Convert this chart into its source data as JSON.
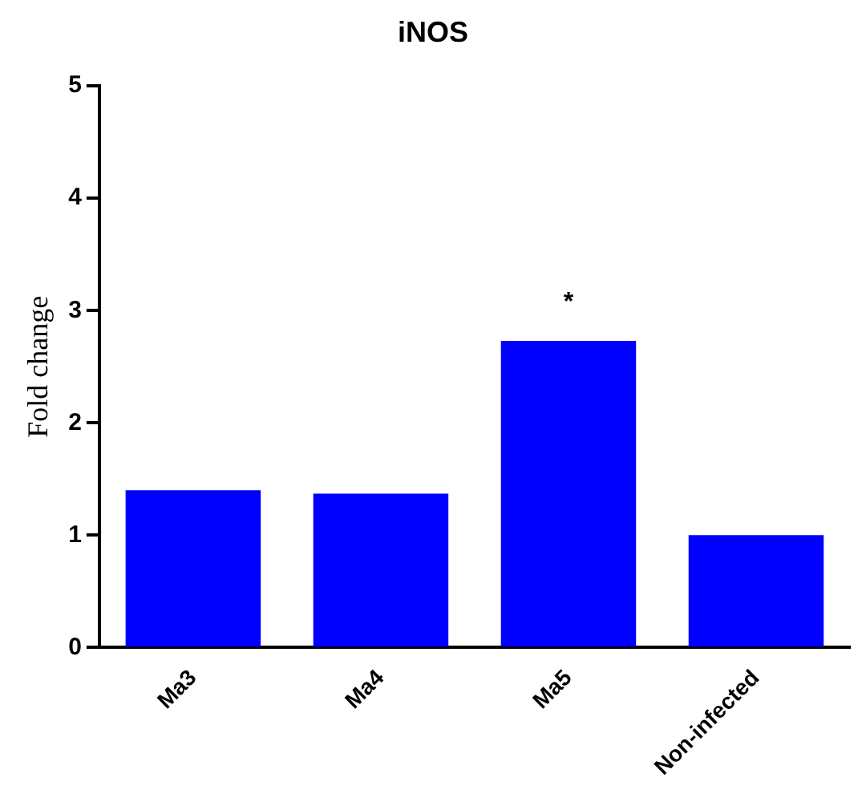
{
  "chart_data": {
    "type": "bar",
    "title": "iNOS",
    "ylabel": "Fold change",
    "categories": [
      "Ma3",
      "Ma4",
      "Ma5",
      "Non-infected"
    ],
    "values": [
      1.4,
      1.37,
      2.73,
      1.0
    ],
    "color": "#0000ff",
    "ylim": [
      0,
      5
    ],
    "yticks": [
      0,
      1,
      2,
      3,
      4,
      5
    ],
    "grid": false,
    "legend": false,
    "annotations": [
      {
        "text": "*",
        "x": "Ma5",
        "y": 2.73
      }
    ]
  }
}
